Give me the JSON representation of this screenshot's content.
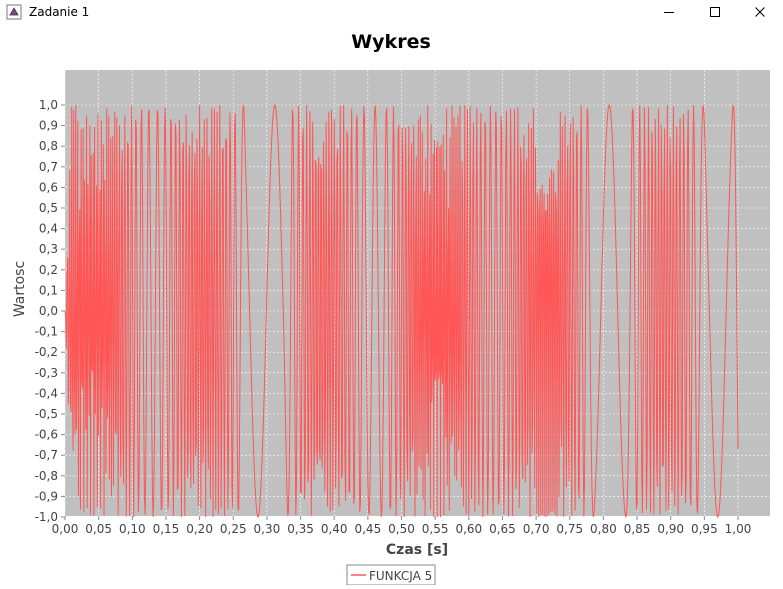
{
  "window": {
    "title": "Zadanie 1",
    "icons": {
      "app": "java-app-icon",
      "minimize": "minimize-icon",
      "maximize": "maximize-icon",
      "close": "close-icon"
    }
  },
  "chart_data": {
    "type": "line",
    "title": "Wykres",
    "xlabel": "Czas  [s]",
    "ylabel": "Wartosc",
    "xlim": [
      0.0,
      1.0
    ],
    "ylim": [
      -1.0,
      1.0
    ],
    "x_ticks": [
      "0,00",
      "0,05",
      "0,10",
      "0,15",
      "0,20",
      "0,25",
      "0,30",
      "0,35",
      "0,40",
      "0,45",
      "0,50",
      "0,55",
      "0,60",
      "0,65",
      "0,70",
      "0,75",
      "0,80",
      "0,85",
      "0,90",
      "0,95",
      "1,00"
    ],
    "y_ticks": [
      "1,0",
      "0,9",
      "0,8",
      "0,7",
      "0,6",
      "0,5",
      "0,4",
      "0,3",
      "0,2",
      "0,1",
      "0,0",
      "-0,1",
      "-0,2",
      "-0,3",
      "-0,4",
      "-0,5",
      "-0,6",
      "-0,7",
      "-0,8",
      "-0,9",
      "-1,0"
    ],
    "grid": true,
    "legend_position": "bottom-center",
    "plot_background": "#c0c0c0",
    "series": [
      {
        "name": "FUNKCJA 5",
        "color": "#ff5555",
        "description_formula": "approx sin(2*pi*f*t) with quasi-random bursty modulation; oscillates between -1 and 1",
        "sample_count": 1000
      }
    ]
  }
}
